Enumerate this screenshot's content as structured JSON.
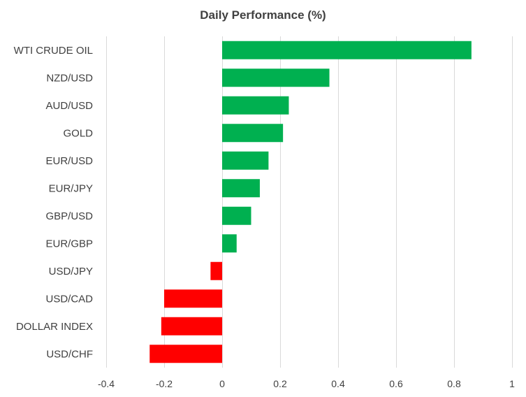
{
  "chart_data": {
    "type": "bar",
    "orientation": "horizontal",
    "title": "Daily Performance  (%)",
    "categories": [
      "WTI CRUDE OIL",
      "NZD/USD",
      "AUD/USD",
      "GOLD",
      "EUR/USD",
      "EUR/JPY",
      "GBP/USD",
      "EUR/GBP",
      "USD/JPY",
      "USD/CAD",
      "DOLLAR INDEX",
      "USD/CHF"
    ],
    "values": [
      0.86,
      0.37,
      0.23,
      0.21,
      0.16,
      0.13,
      0.1,
      0.05,
      -0.04,
      -0.2,
      -0.21,
      -0.25
    ],
    "xlim": [
      -0.4,
      1
    ],
    "xticks": [
      -0.4,
      -0.2,
      0,
      0.2,
      0.4,
      0.6,
      0.8,
      1
    ],
    "xtick_labels": [
      "-0.4",
      "-0.2",
      "0",
      "0.2",
      "0.4",
      "0.6",
      "0.8",
      "1"
    ],
    "grid": true,
    "legend": "none",
    "colors": {
      "positive": "#00B050",
      "negative": "#FF0000",
      "grid": "#D9D9D9",
      "text": "#404040"
    }
  }
}
